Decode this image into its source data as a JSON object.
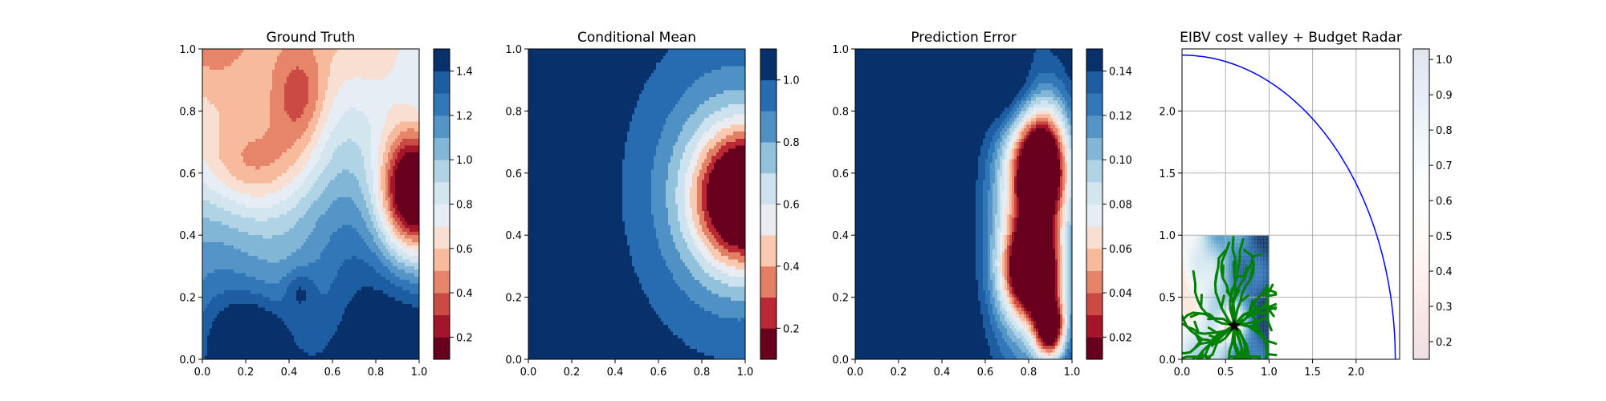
{
  "colors": {
    "rdbu": [
      "#67001f",
      "#b2182b",
      "#d6604d",
      "#f4a582",
      "#fddbc7",
      "#e8eef4",
      "#d1e5f0",
      "#a6cfe3",
      "#6aa6cf",
      "#3a7fbd",
      "#2166ac",
      "#08306b"
    ],
    "rdbu_smooth": [
      "#67001f",
      "#b2182b",
      "#d6604d",
      "#f4a582",
      "#fddbc7",
      "#f7f7f7",
      "#d1e5f0",
      "#92c5de",
      "#4393c3",
      "#2166ac",
      "#053061"
    ],
    "grid": "#b0b0b0",
    "radar_arc": "#0000ff",
    "paths": "#008000",
    "marker": "#000000"
  },
  "chart_data": [
    {
      "type": "heatmap",
      "title": "Ground Truth",
      "xlabel": "",
      "ylabel": "",
      "xlim": [
        0.0,
        1.0
      ],
      "ylim": [
        0.0,
        1.0
      ],
      "x_ticks": [
        "0.0",
        "0.2",
        "0.4",
        "0.6",
        "0.8",
        "1.0"
      ],
      "y_ticks": [
        "0.0",
        "0.2",
        "0.4",
        "0.6",
        "0.8",
        "1.0"
      ],
      "levels": [
        0.1,
        0.2,
        0.3,
        0.4,
        0.5,
        0.6,
        0.7,
        0.8,
        0.9,
        1.0,
        1.1,
        1.2,
        1.3,
        1.4,
        1.5
      ],
      "colorbar_ticks": [
        "0.2",
        "0.4",
        "0.6",
        "0.8",
        "1.0",
        "1.2",
        "1.4"
      ],
      "colorbar_tick_values": [
        0.2,
        0.4,
        0.6,
        0.8,
        1.0,
        1.2,
        1.4
      ],
      "colorbar_range": [
        0.1,
        1.5
      ],
      "colormap": "RdBu",
      "grid": false
    },
    {
      "type": "heatmap",
      "title": "Conditional Mean",
      "xlabel": "",
      "ylabel": "",
      "xlim": [
        0.0,
        1.0
      ],
      "ylim": [
        0.0,
        1.0
      ],
      "x_ticks": [
        "0.0",
        "0.2",
        "0.4",
        "0.6",
        "0.8",
        "1.0"
      ],
      "y_ticks": [
        "0.0",
        "0.2",
        "0.4",
        "0.6",
        "0.8",
        "1.0"
      ],
      "levels": [
        0.1,
        0.2,
        0.3,
        0.4,
        0.5,
        0.6,
        0.7,
        0.8,
        0.9,
        1.0,
        1.1
      ],
      "colorbar_ticks": [
        "0.2",
        "0.4",
        "0.6",
        "0.8",
        "1.0"
      ],
      "colorbar_tick_values": [
        0.2,
        0.4,
        0.6,
        0.8,
        1.0
      ],
      "colorbar_range": [
        0.1,
        1.1
      ],
      "colormap": "RdBu",
      "grid": false
    },
    {
      "type": "heatmap",
      "title": "Prediction Error",
      "xlabel": "",
      "ylabel": "",
      "xlim": [
        0.0,
        1.0
      ],
      "ylim": [
        0.0,
        1.0
      ],
      "x_ticks": [
        "0.0",
        "0.2",
        "0.4",
        "0.6",
        "0.8",
        "1.0"
      ],
      "y_ticks": [
        "0.0",
        "0.2",
        "0.4",
        "0.6",
        "0.8",
        "1.0"
      ],
      "levels": [
        0.01,
        0.02,
        0.03,
        0.04,
        0.05,
        0.06,
        0.07,
        0.08,
        0.09,
        0.1,
        0.11,
        0.12,
        0.13,
        0.14,
        0.15
      ],
      "colorbar_ticks": [
        "0.02",
        "0.04",
        "0.06",
        "0.08",
        "0.10",
        "0.12",
        "0.14"
      ],
      "colorbar_tick_values": [
        0.02,
        0.04,
        0.06,
        0.08,
        0.1,
        0.12,
        0.14
      ],
      "colorbar_range": [
        0.01,
        0.15
      ],
      "colormap": "RdBu",
      "grid": false
    },
    {
      "type": "scatter",
      "title": "EIBV cost valley + Budget Radar",
      "xlabel": "",
      "ylabel": "",
      "xlim": [
        0.0,
        2.5
      ],
      "ylim": [
        0.0,
        2.5
      ],
      "x_ticks": [
        "0.0",
        "0.5",
        "1.0",
        "1.5",
        "2.0"
      ],
      "x_tick_values": [
        0.0,
        0.5,
        1.0,
        1.5,
        2.0
      ],
      "y_ticks": [
        "0.0",
        "0.5",
        "1.0",
        "1.5",
        "2.0"
      ],
      "y_tick_values": [
        0.0,
        0.5,
        1.0,
        1.5,
        2.0
      ],
      "grid": true,
      "colorbar_ticks": [
        "0.2",
        "0.3",
        "0.4",
        "0.5",
        "0.6",
        "0.7",
        "0.8",
        "0.9",
        "1.0"
      ],
      "colorbar_tick_values": [
        0.2,
        0.3,
        0.4,
        0.5,
        0.6,
        0.7,
        0.8,
        0.9,
        1.0
      ],
      "colorbar_range": [
        0.15,
        1.03
      ],
      "colormap": "RdBu",
      "budget_radius": 2.45,
      "cost_valley_extent": [
        0.0,
        1.0,
        0.0,
        1.0
      ],
      "current_location": {
        "x": 0.6,
        "y": 0.27,
        "marker": "star"
      },
      "path_count": 28
    }
  ]
}
